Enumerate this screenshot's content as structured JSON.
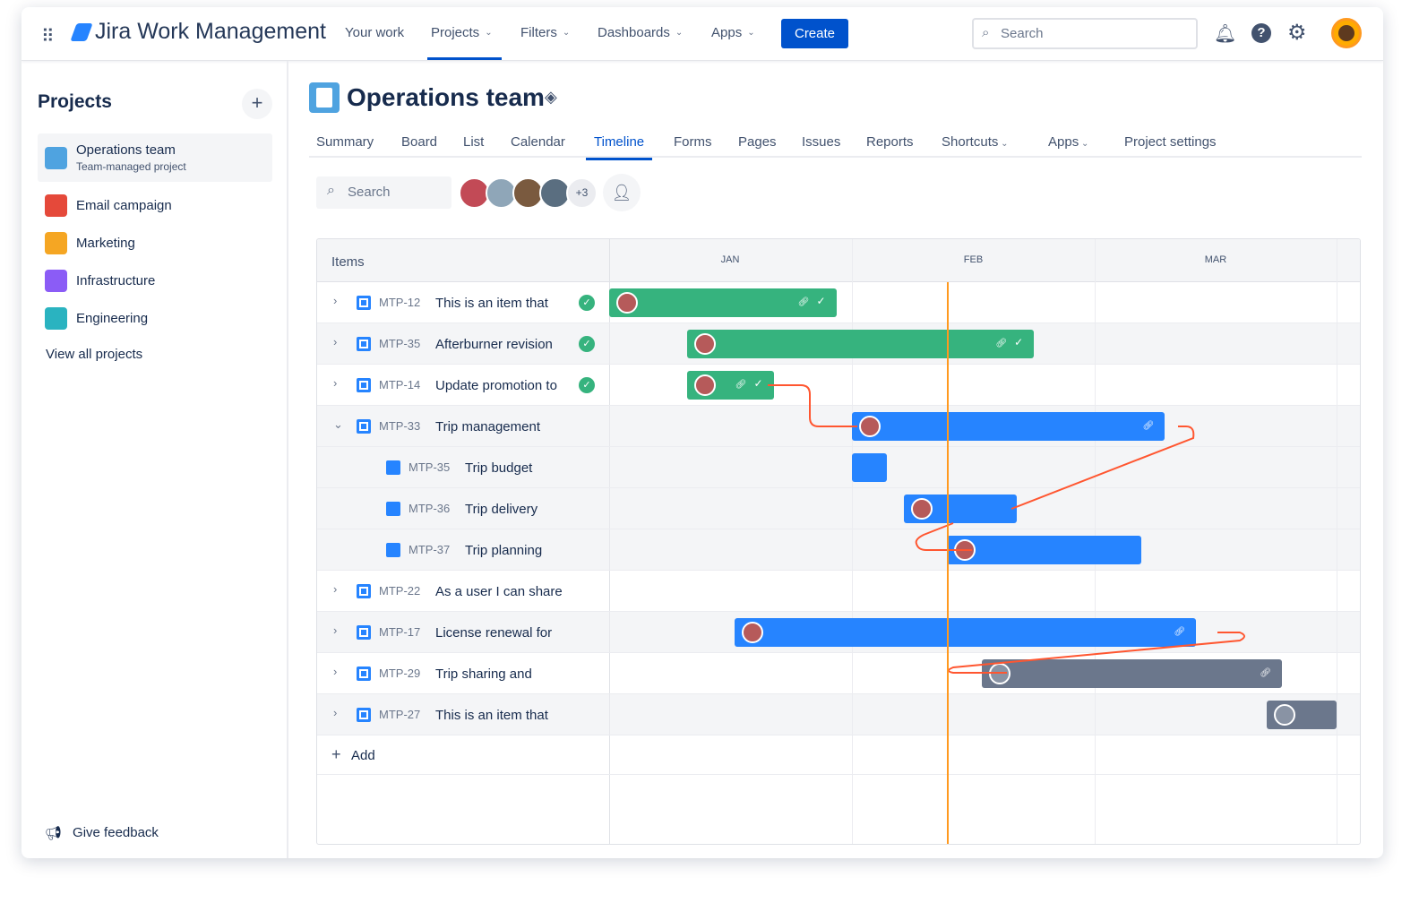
{
  "topbar": {
    "product": "Jira Work Management",
    "nav": [
      "Your work",
      "Projects",
      "Filters",
      "Dashboards",
      "Apps"
    ],
    "create": "Create",
    "search_placeholder": "Search"
  },
  "sidebar": {
    "title": "Projects",
    "projects": [
      {
        "name": "Operations team",
        "sub": "Team-managed project",
        "color": "#4fa3e0"
      },
      {
        "name": "Email campaign",
        "color": "#e5493a"
      },
      {
        "name": "Marketing",
        "color": "#f5a623"
      },
      {
        "name": "Infrastructure",
        "color": "#8b5cf6"
      },
      {
        "name": "Engineering",
        "color": "#2ab3c0"
      }
    ],
    "view_all": "View all projects",
    "feedback": "Give feedback"
  },
  "project": {
    "title": "Operations team",
    "tabs": [
      "Summary",
      "Board",
      "List",
      "Calendar",
      "Timeline",
      "Forms",
      "Pages",
      "Issues",
      "Reports",
      "Shortcuts",
      "Apps",
      "Project settings"
    ],
    "active_tab": "Timeline",
    "search_placeholder": "Search",
    "more_members": "+3"
  },
  "timeline": {
    "items_header": "Items",
    "months": [
      "JAN",
      "FEB",
      "MAR"
    ],
    "today": "02-12",
    "add": "Add",
    "rows": [
      {
        "key": "MTP-12",
        "title": "This is an item that",
        "done": true,
        "expand": "collapsed",
        "start": "01-01",
        "end": "01-29",
        "color": "#36b37e",
        "link": true
      },
      {
        "key": "MTP-35",
        "title": "Afterburner revision",
        "done": true,
        "expand": "collapsed",
        "start": "01-11",
        "end": "02-21",
        "color": "#36b37e",
        "link": true
      },
      {
        "key": "MTP-14",
        "title": "Update promotion to",
        "done": true,
        "expand": "collapsed",
        "start": "01-11",
        "end": "01-21",
        "color": "#36b37e",
        "link": true
      },
      {
        "key": "MTP-33",
        "title": "Trip management",
        "done": false,
        "expand": "expanded",
        "start": "02-01",
        "end": "03-09",
        "color": "#2684ff",
        "link": true
      },
      {
        "key": "MTP-35",
        "title": "Trip budget",
        "child": true,
        "start": "02-01",
        "end": "02-04",
        "color": "#2684ff",
        "noavatar": true
      },
      {
        "key": "MTP-36",
        "title": "Trip delivery",
        "child": true,
        "start": "02-07",
        "end": "02-19",
        "color": "#2684ff"
      },
      {
        "key": "MTP-37",
        "title": "Trip planning",
        "child": true,
        "start": "02-12",
        "end": "03-06",
        "color": "#2684ff"
      },
      {
        "key": "MTP-22",
        "title": "As a user I can share",
        "expand": "collapsed"
      },
      {
        "key": "MTP-17",
        "title": "License renewal for",
        "expand": "collapsed",
        "start": "01-17",
        "end": "03-13",
        "color": "#2684ff",
        "link": true
      },
      {
        "key": "MTP-29",
        "title": "Trip sharing and",
        "expand": "collapsed",
        "start": "02-16",
        "end": "03-24",
        "color": "#6b778c",
        "link": true,
        "unassigned": true
      },
      {
        "key": "MTP-27",
        "title": "This is an item that",
        "expand": "collapsed",
        "start": "03-23",
        "end": "03-31",
        "color": "#6b778c",
        "unassigned": true
      }
    ]
  },
  "colors": {
    "accent": "#0052cc",
    "today_line": "#ff991f",
    "dependency": "#ff5630"
  }
}
